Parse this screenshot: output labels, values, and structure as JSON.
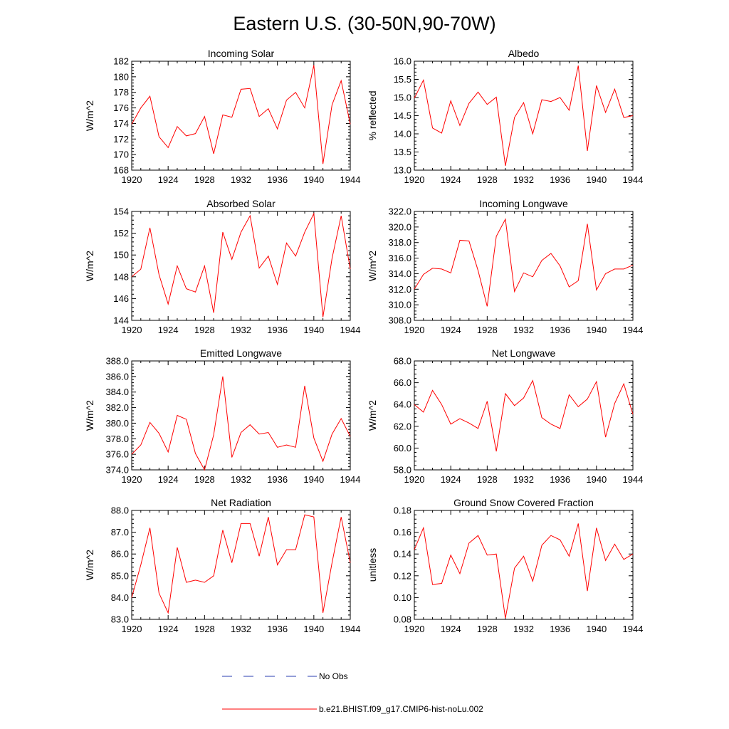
{
  "figure": {
    "title": "Eastern U.S. (30-50N,90-70W)",
    "series_color": "#ff0000",
    "obs_color": "#2a3eb1"
  },
  "legend": {
    "entries": [
      {
        "label": "No Obs",
        "style": "dashed",
        "color": "#2a3eb1"
      },
      {
        "label": "b.e21.BHIST.f09_g17.CMIP6-hist-noLu.002",
        "style": "solid",
        "color": "#ff0000"
      }
    ]
  },
  "chart_data": [
    {
      "type": "line",
      "title": "Incoming Solar",
      "xlabel": "",
      "ylabel": "W/m^2",
      "xlim": [
        1920,
        1944
      ],
      "ylim": [
        168,
        182
      ],
      "xticks": [
        "1920",
        "1924",
        "1928",
        "1932",
        "1936",
        "1940",
        "1944"
      ],
      "yticks": [
        "168",
        "170",
        "172",
        "174",
        "176",
        "178",
        "180",
        "182"
      ],
      "x": [
        1920,
        1921,
        1922,
        1923,
        1924,
        1925,
        1926,
        1927,
        1928,
        1929,
        1930,
        1931,
        1932,
        1933,
        1934,
        1935,
        1936,
        1937,
        1938,
        1939,
        1940,
        1941,
        1942,
        1943,
        1944
      ],
      "series": [
        {
          "name": "b.e21.BHIST.f09_g17.CMIP6-hist-noLu.002",
          "values": [
            173.9,
            176.0,
            177.5,
            172.3,
            170.9,
            173.6,
            172.4,
            172.7,
            174.9,
            170.1,
            175.1,
            174.8,
            178.4,
            178.5,
            174.9,
            175.9,
            173.3,
            177.0,
            178.0,
            176.0,
            181.5,
            168.8,
            176.4,
            179.5,
            173.9
          ]
        }
      ]
    },
    {
      "type": "line",
      "title": "Albedo",
      "xlabel": "",
      "ylabel": "% reflected",
      "xlim": [
        1920,
        1944
      ],
      "ylim": [
        13.0,
        16.0
      ],
      "xticks": [
        "1920",
        "1924",
        "1928",
        "1932",
        "1936",
        "1940",
        "1944"
      ],
      "yticks": [
        "13.0",
        "13.5",
        "14.0",
        "14.5",
        "15.0",
        "15.5",
        "16.0"
      ],
      "x": [
        1920,
        1921,
        1922,
        1923,
        1924,
        1925,
        1926,
        1927,
        1928,
        1929,
        1930,
        1931,
        1932,
        1933,
        1934,
        1935,
        1936,
        1937,
        1938,
        1939,
        1940,
        1941,
        1942,
        1943,
        1944
      ],
      "series": [
        {
          "name": "b.e21.BHIST.f09_g17.CMIP6-hist-noLu.002",
          "values": [
            14.98,
            15.48,
            14.16,
            14.02,
            14.91,
            14.23,
            14.84,
            15.15,
            14.81,
            15.01,
            13.12,
            14.45,
            14.86,
            14.0,
            14.94,
            14.89,
            15.0,
            14.65,
            15.88,
            13.53,
            15.33,
            14.59,
            15.23,
            14.45,
            14.5
          ]
        }
      ]
    },
    {
      "type": "line",
      "title": "Absorbed Solar",
      "xlabel": "",
      "ylabel": "W/m^2",
      "xlim": [
        1920,
        1944
      ],
      "ylim": [
        144,
        154
      ],
      "xticks": [
        "1920",
        "1924",
        "1928",
        "1932",
        "1936",
        "1940",
        "1944"
      ],
      "yticks": [
        "144",
        "146",
        "148",
        "150",
        "152",
        "154"
      ],
      "x": [
        1920,
        1921,
        1922,
        1923,
        1924,
        1925,
        1926,
        1927,
        1928,
        1929,
        1930,
        1931,
        1932,
        1933,
        1934,
        1935,
        1936,
        1937,
        1938,
        1939,
        1940,
        1941,
        1942,
        1943,
        1944
      ],
      "series": [
        {
          "name": "b.e21.BHIST.f09_g17.CMIP6-hist-noLu.002",
          "values": [
            148.0,
            148.7,
            152.5,
            148.2,
            145.5,
            149.0,
            146.9,
            146.6,
            149.0,
            144.7,
            152.1,
            149.6,
            152.1,
            153.6,
            148.8,
            149.9,
            147.3,
            151.1,
            149.9,
            152.1,
            153.8,
            144.3,
            149.7,
            153.6,
            148.7
          ]
        }
      ]
    },
    {
      "type": "line",
      "title": "Incoming Longwave",
      "xlabel": "",
      "ylabel": "W/m^2",
      "xlim": [
        1920,
        1944
      ],
      "ylim": [
        308.0,
        322.0
      ],
      "xticks": [
        "1920",
        "1924",
        "1928",
        "1932",
        "1936",
        "1940",
        "1944"
      ],
      "yticks": [
        "308.0",
        "310.0",
        "312.0",
        "314.0",
        "316.0",
        "318.0",
        "320.0",
        "322.0"
      ],
      "x": [
        1920,
        1921,
        1922,
        1923,
        1924,
        1925,
        1926,
        1927,
        1928,
        1929,
        1930,
        1931,
        1932,
        1933,
        1934,
        1935,
        1936,
        1937,
        1938,
        1939,
        1940,
        1941,
        1942,
        1943,
        1944
      ],
      "series": [
        {
          "name": "b.e21.BHIST.f09_g17.CMIP6-hist-noLu.002",
          "values": [
            312.0,
            313.9,
            314.7,
            314.6,
            314.1,
            318.3,
            318.2,
            314.4,
            309.8,
            318.8,
            321.0,
            311.7,
            314.1,
            313.6,
            315.7,
            316.6,
            315.0,
            312.3,
            313.1,
            320.4,
            311.9,
            314.0,
            314.6,
            314.6,
            315.1
          ]
        }
      ]
    },
    {
      "type": "line",
      "title": "Emitted Longwave",
      "xlabel": "",
      "ylabel": "W/m^2",
      "xlim": [
        1920,
        1944
      ],
      "ylim": [
        374.0,
        388.0
      ],
      "xticks": [
        "1920",
        "1924",
        "1928",
        "1932",
        "1936",
        "1940",
        "1944"
      ],
      "yticks": [
        "374.0",
        "376.0",
        "378.0",
        "380.0",
        "382.0",
        "384.0",
        "386.0",
        "388.0"
      ],
      "x": [
        1920,
        1921,
        1922,
        1923,
        1924,
        1925,
        1926,
        1927,
        1928,
        1929,
        1930,
        1931,
        1932,
        1933,
        1934,
        1935,
        1936,
        1937,
        1938,
        1939,
        1940,
        1941,
        1942,
        1943,
        1944
      ],
      "series": [
        {
          "name": "b.e21.BHIST.f09_g17.CMIP6-hist-noLu.002",
          "values": [
            376.0,
            377.2,
            380.1,
            378.7,
            376.3,
            381.0,
            380.5,
            376.1,
            374.0,
            378.5,
            386.0,
            375.6,
            378.8,
            379.8,
            378.6,
            378.8,
            376.9,
            377.2,
            376.9,
            384.8,
            378.1,
            375.1,
            378.6,
            380.6,
            378.3
          ]
        }
      ]
    },
    {
      "type": "line",
      "title": "Net Longwave",
      "xlabel": "",
      "ylabel": "W/m^2",
      "xlim": [
        1920,
        1944
      ],
      "ylim": [
        58.0,
        68.0
      ],
      "xticks": [
        "1920",
        "1924",
        "1928",
        "1932",
        "1936",
        "1940",
        "1944"
      ],
      "yticks": [
        "58.0",
        "60.0",
        "62.0",
        "64.0",
        "66.0",
        "68.0"
      ],
      "x": [
        1920,
        1921,
        1922,
        1923,
        1924,
        1925,
        1926,
        1927,
        1928,
        1929,
        1930,
        1931,
        1932,
        1933,
        1934,
        1935,
        1936,
        1937,
        1938,
        1939,
        1940,
        1941,
        1942,
        1943,
        1944
      ],
      "series": [
        {
          "name": "b.e21.BHIST.f09_g17.CMIP6-hist-noLu.002",
          "values": [
            64.0,
            63.3,
            65.3,
            64.0,
            62.2,
            62.7,
            62.3,
            61.8,
            64.3,
            59.7,
            65.0,
            63.9,
            64.6,
            66.2,
            62.8,
            62.2,
            61.8,
            64.9,
            63.8,
            64.5,
            66.1,
            61.0,
            64.1,
            65.9,
            63.1
          ]
        }
      ]
    },
    {
      "type": "line",
      "title": "Net Radiation",
      "xlabel": "",
      "ylabel": "W/m^2",
      "xlim": [
        1920,
        1944
      ],
      "ylim": [
        83.0,
        88.0
      ],
      "xticks": [
        "1920",
        "1924",
        "1928",
        "1932",
        "1936",
        "1940",
        "1944"
      ],
      "yticks": [
        "83.0",
        "84.0",
        "85.0",
        "86.0",
        "87.0",
        "88.0"
      ],
      "x": [
        1920,
        1921,
        1922,
        1923,
        1924,
        1925,
        1926,
        1927,
        1928,
        1929,
        1930,
        1931,
        1932,
        1933,
        1934,
        1935,
        1936,
        1937,
        1938,
        1939,
        1940,
        1941,
        1942,
        1943,
        1944
      ],
      "series": [
        {
          "name": "b.e21.BHIST.f09_g17.CMIP6-hist-noLu.002",
          "values": [
            84.0,
            85.5,
            87.2,
            84.2,
            83.3,
            86.3,
            84.7,
            84.8,
            84.7,
            85.0,
            87.1,
            85.6,
            87.4,
            87.4,
            85.9,
            87.7,
            85.5,
            86.2,
            86.2,
            87.8,
            87.7,
            83.3,
            85.6,
            87.7,
            85.6
          ]
        }
      ]
    },
    {
      "type": "line",
      "title": "Ground Snow Covered Fraction",
      "xlabel": "",
      "ylabel": "unitless",
      "xlim": [
        1920,
        1944
      ],
      "ylim": [
        0.08,
        0.18
      ],
      "xticks": [
        "1920",
        "1924",
        "1928",
        "1932",
        "1936",
        "1940",
        "1944"
      ],
      "yticks": [
        "0.08",
        "0.10",
        "0.12",
        "0.14",
        "0.16",
        "0.18"
      ],
      "x": [
        1920,
        1921,
        1922,
        1923,
        1924,
        1925,
        1926,
        1927,
        1928,
        1929,
        1930,
        1931,
        1932,
        1933,
        1934,
        1935,
        1936,
        1937,
        1938,
        1939,
        1940,
        1941,
        1942,
        1943,
        1944
      ],
      "series": [
        {
          "name": "b.e21.BHIST.f09_g17.CMIP6-hist-noLu.002",
          "values": [
            0.144,
            0.164,
            0.112,
            0.113,
            0.139,
            0.122,
            0.15,
            0.157,
            0.139,
            0.14,
            0.081,
            0.127,
            0.138,
            0.115,
            0.148,
            0.157,
            0.153,
            0.138,
            0.168,
            0.106,
            0.164,
            0.134,
            0.149,
            0.135,
            0.14
          ]
        }
      ]
    }
  ]
}
